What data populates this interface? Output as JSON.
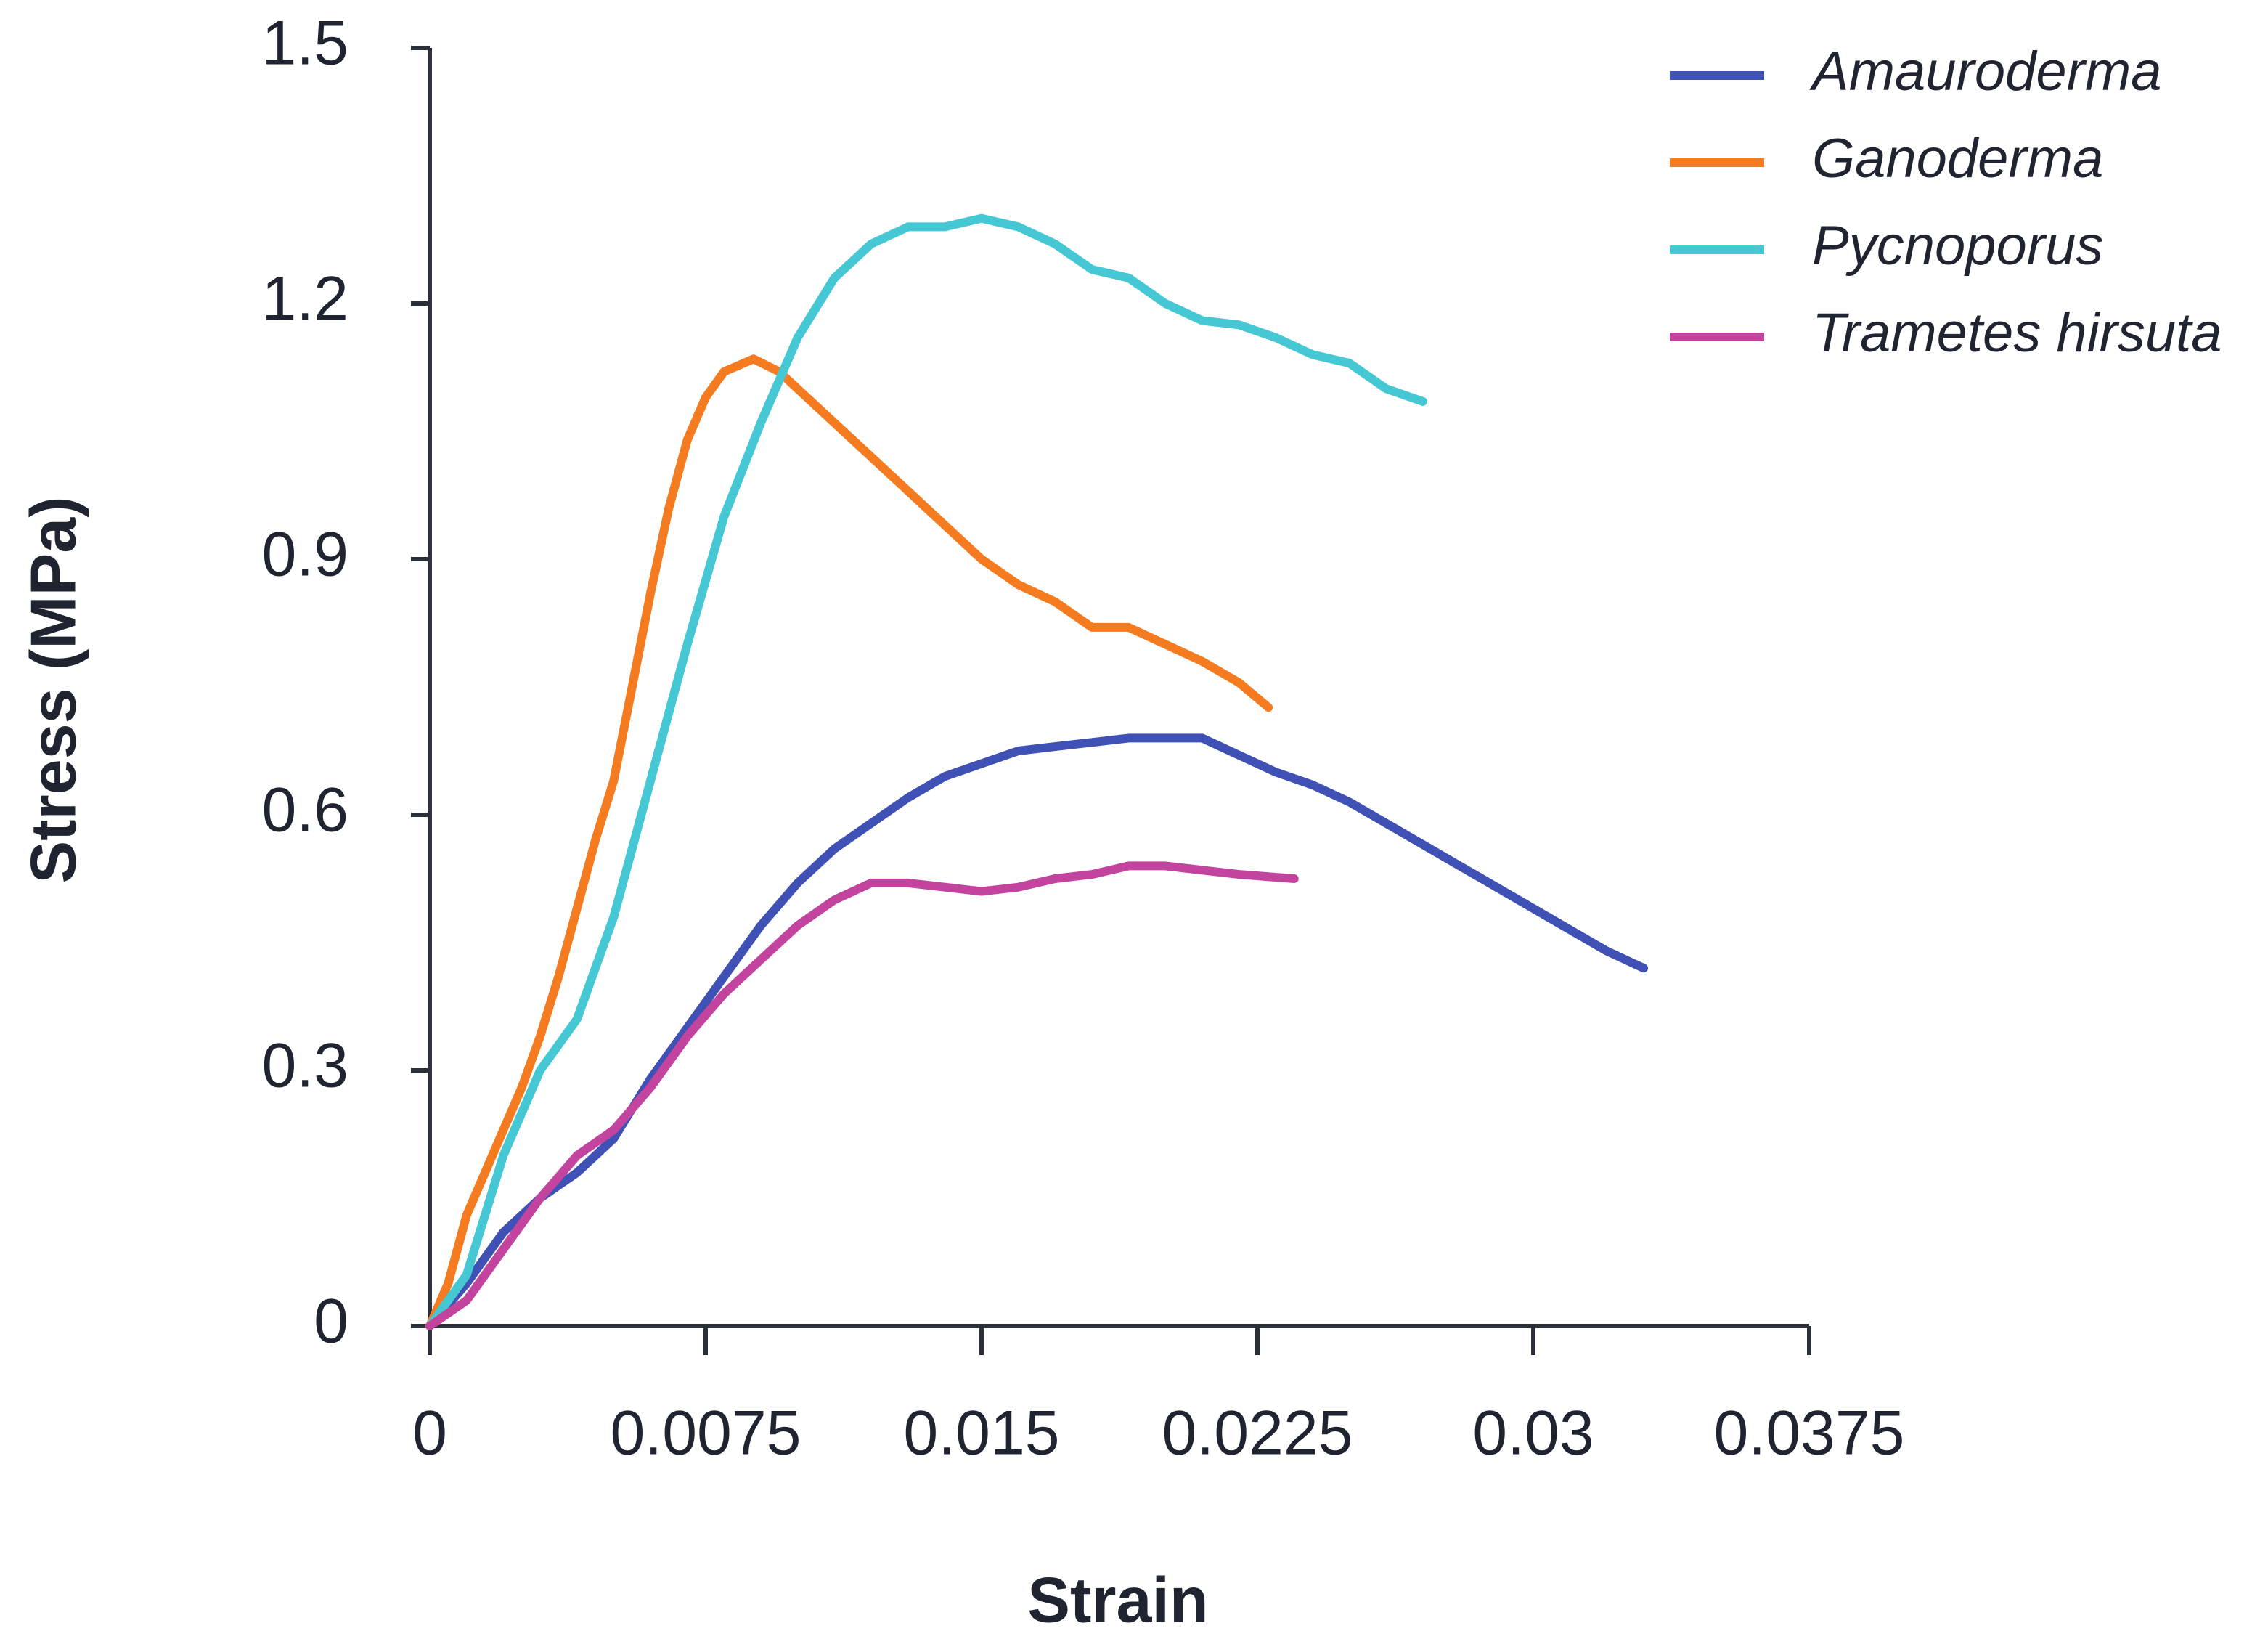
{
  "chart_data": {
    "type": "line",
    "x_label": "Strain",
    "y_label": "Stress (MPa)",
    "xlim": [
      0,
      0.0375
    ],
    "xticks": [
      0,
      0.0075,
      0.015,
      0.0225,
      0.03,
      0.0375
    ],
    "ylim": [
      0,
      1.5
    ],
    "yticks": [
      0,
      0.3,
      0.6,
      0.9,
      1.2,
      1.5
    ],
    "legend": "top-right",
    "series": [
      {
        "name": "Amauroderma",
        "color": "#3f51b5",
        "x": [
          0,
          0.001,
          0.002,
          0.003,
          0.004,
          0.005,
          0.006,
          0.007,
          0.008,
          0.009,
          0.01,
          0.011,
          0.012,
          0.013,
          0.014,
          0.015,
          0.016,
          0.017,
          0.018,
          0.019,
          0.02,
          0.021,
          0.022,
          0.023,
          0.024,
          0.025,
          0.026,
          0.027,
          0.028,
          0.029,
          0.03,
          0.031,
          0.032,
          0.033
        ],
        "values": [
          0,
          0.05,
          0.11,
          0.15,
          0.18,
          0.22,
          0.29,
          0.35,
          0.41,
          0.47,
          0.52,
          0.56,
          0.59,
          0.62,
          0.645,
          0.66,
          0.675,
          0.68,
          0.685,
          0.69,
          0.69,
          0.69,
          0.67,
          0.65,
          0.635,
          0.615,
          0.59,
          0.565,
          0.54,
          0.515,
          0.49,
          0.465,
          0.44,
          0.42
        ]
      },
      {
        "name": "Ganoderma",
        "color": "#f47b20",
        "x": [
          0,
          0.0005,
          0.001,
          0.0015,
          0.002,
          0.0025,
          0.003,
          0.0035,
          0.004,
          0.0045,
          0.005,
          0.0055,
          0.006,
          0.0065,
          0.007,
          0.0075,
          0.008,
          0.0088,
          0.0095,
          0.011,
          0.012,
          0.013,
          0.014,
          0.015,
          0.016,
          0.017,
          0.018,
          0.019,
          0.02,
          0.021,
          0.022,
          0.0228
        ],
        "values": [
          0,
          0.05,
          0.13,
          0.18,
          0.23,
          0.28,
          0.34,
          0.41,
          0.49,
          0.57,
          0.64,
          0.75,
          0.86,
          0.96,
          1.04,
          1.09,
          1.12,
          1.135,
          1.12,
          1.06,
          1.02,
          0.98,
          0.94,
          0.9,
          0.87,
          0.85,
          0.82,
          0.82,
          0.8,
          0.78,
          0.755,
          0.726
        ]
      },
      {
        "name": "Pycnoporus",
        "color": "#45c8d4",
        "x": [
          0,
          0.001,
          0.002,
          0.003,
          0.004,
          0.005,
          0.006,
          0.007,
          0.008,
          0.009,
          0.01,
          0.011,
          0.012,
          0.013,
          0.014,
          0.015,
          0.016,
          0.017,
          0.018,
          0.019,
          0.02,
          0.021,
          0.022,
          0.023,
          0.024,
          0.025,
          0.026,
          0.027
        ],
        "values": [
          0,
          0.06,
          0.2,
          0.3,
          0.36,
          0.48,
          0.64,
          0.8,
          0.95,
          1.06,
          1.16,
          1.23,
          1.27,
          1.29,
          1.29,
          1.3,
          1.29,
          1.27,
          1.24,
          1.23,
          1.2,
          1.18,
          1.175,
          1.16,
          1.14,
          1.13,
          1.1,
          1.085
        ]
      },
      {
        "name": "Trametes hirsuta",
        "color": "#c2449e",
        "x": [
          0,
          0.001,
          0.002,
          0.003,
          0.004,
          0.005,
          0.006,
          0.007,
          0.008,
          0.009,
          0.01,
          0.011,
          0.012,
          0.013,
          0.014,
          0.015,
          0.016,
          0.017,
          0.018,
          0.019,
          0.02,
          0.021,
          0.022,
          0.0235
        ],
        "values": [
          0,
          0.03,
          0.09,
          0.15,
          0.2,
          0.23,
          0.28,
          0.34,
          0.39,
          0.43,
          0.47,
          0.5,
          0.52,
          0.52,
          0.515,
          0.51,
          0.515,
          0.525,
          0.53,
          0.54,
          0.54,
          0.535,
          0.53,
          0.525
        ]
      }
    ]
  }
}
